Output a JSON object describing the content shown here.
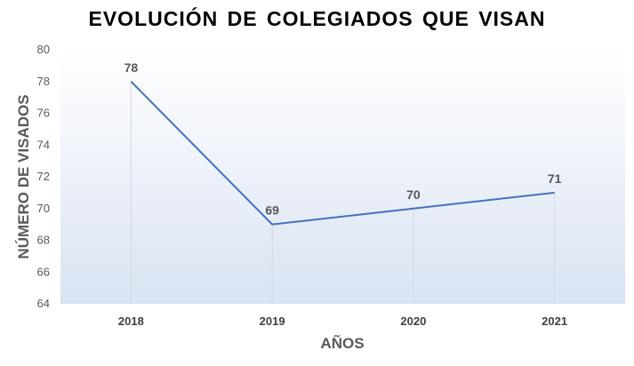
{
  "chart_data": {
    "type": "line",
    "title": "EVOLUCIÓN DE COLEGIADOS QUE VISAN",
    "xlabel": "AÑOS",
    "ylabel": "NÚMERO DE VISADOS",
    "categories": [
      "2018",
      "2019",
      "2020",
      "2021"
    ],
    "series": [
      {
        "values": [
          78,
          69,
          70,
          71
        ]
      }
    ],
    "data_labels": [
      "78",
      "69",
      "70",
      "71"
    ],
    "ylim": [
      64,
      80
    ],
    "yticks": [
      64,
      66,
      68,
      70,
      72,
      74,
      76,
      78,
      80
    ],
    "ytick_labels": [
      "64",
      "66",
      "68",
      "70",
      "72",
      "74",
      "76",
      "78",
      "80"
    ],
    "grid": "vertical",
    "legend": "none",
    "line_color": "#4472c4",
    "plot_gradient_top": "#ffffff",
    "plot_gradient_bottom": "#dae3f3"
  }
}
